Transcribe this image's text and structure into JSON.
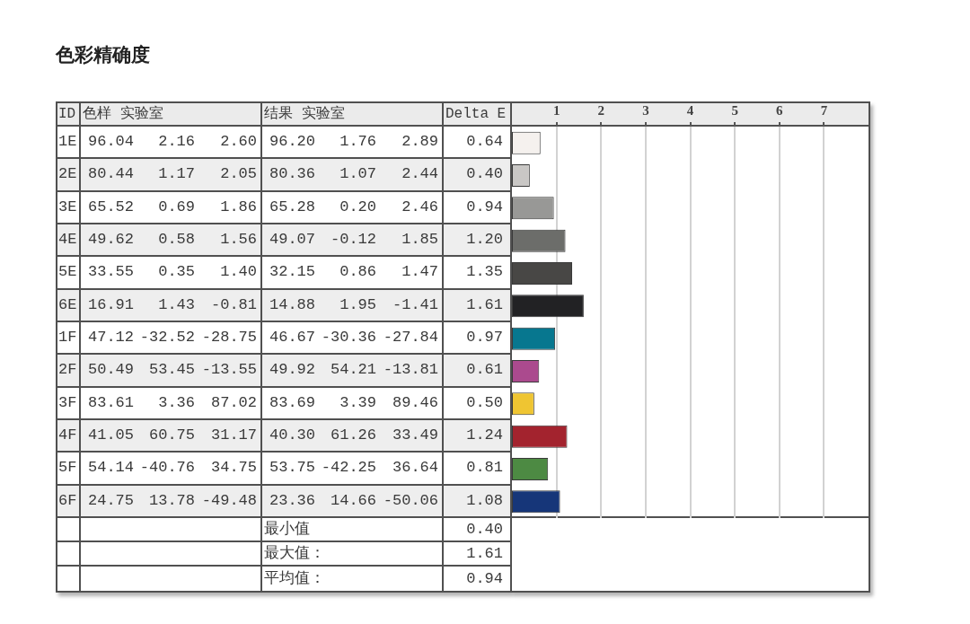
{
  "chart_data": [
    {
      "type": "heatmap",
      "title": "色彩精确度",
      "ylabel": "ID",
      "categories": [
        "色样 实验室",
        null,
        null,
        "结果 实验室",
        null,
        null,
        "Delta E"
      ],
      "y_categories": [
        "1E",
        "2E",
        "3E",
        "4E",
        "5E",
        "6E",
        "1F",
        "2F",
        "3F",
        "4F",
        "5F",
        "6F"
      ],
      "cells": [
        [
          96.04,
          2.16,
          2.6,
          96.2,
          1.76,
          2.89,
          0.64
        ],
        [
          80.44,
          1.17,
          2.05,
          80.36,
          1.07,
          2.44,
          0.4
        ],
        [
          65.52,
          0.69,
          1.86,
          65.28,
          0.2,
          2.46,
          0.94
        ],
        [
          49.62,
          0.58,
          1.56,
          49.07,
          -0.12,
          1.85,
          1.2
        ],
        [
          33.55,
          0.35,
          1.4,
          32.15,
          0.86,
          1.47,
          1.35
        ],
        [
          16.91,
          1.43,
          -0.81,
          14.88,
          1.95,
          -1.41,
          1.61
        ],
        [
          47.12,
          -32.52,
          -28.75,
          46.67,
          -30.36,
          -27.84,
          0.97
        ],
        [
          50.49,
          53.45,
          -13.55,
          49.92,
          54.21,
          -13.81,
          0.61
        ],
        [
          83.61,
          3.36,
          87.02,
          83.69,
          3.39,
          89.46,
          0.5
        ],
        [
          41.05,
          60.75,
          31.17,
          40.3,
          61.26,
          33.49,
          1.24
        ],
        [
          54.14,
          -40.76,
          34.75,
          53.75,
          -42.25,
          36.64,
          0.81
        ],
        [
          24.75,
          13.78,
          -49.48,
          23.36,
          14.66,
          -50.06,
          1.08
        ]
      ],
      "cell_labels": [
        [
          "96.04",
          "2.16",
          "2.60",
          "96.20",
          "1.76",
          "2.89",
          "0.64"
        ],
        [
          "80.44",
          "1.17",
          "2.05",
          "80.36",
          "1.07",
          "2.44",
          "0.40"
        ],
        [
          "65.52",
          "0.69",
          "1.86",
          "65.28",
          "0.20",
          "2.46",
          "0.94"
        ],
        [
          "49.62",
          "0.58",
          "1.56",
          "49.07",
          "-0.12",
          "1.85",
          "1.20"
        ],
        [
          "33.55",
          "0.35",
          "1.40",
          "32.15",
          "0.86",
          "1.47",
          "1.35"
        ],
        [
          "16.91",
          "1.43",
          "-0.81",
          "14.88",
          "1.95",
          "-1.41",
          "1.61"
        ],
        [
          "47.12",
          "-32.52",
          "-28.75",
          "46.67",
          "-30.36",
          "-27.84",
          "0.97"
        ],
        [
          "50.49",
          "53.45",
          "-13.55",
          "49.92",
          "54.21",
          "-13.81",
          "0.61"
        ],
        [
          "83.61",
          "3.36",
          "87.02",
          "83.69",
          "3.39",
          "89.46",
          "0.50"
        ],
        [
          "41.05",
          "60.75",
          "31.17",
          "40.30",
          "61.26",
          "33.49",
          "1.24"
        ],
        [
          "54.14",
          "-40.76",
          "34.75",
          "53.75",
          "-42.25",
          "36.64",
          "0.81"
        ],
        [
          "24.75",
          "13.78",
          "-49.48",
          "23.36",
          "14.66",
          "-50.06",
          "1.08"
        ]
      ],
      "annotations": [
        "最小值",
        "0.40",
        "最大值：",
        "1.61",
        "平均值：",
        "0.94"
      ]
    },
    {
      "type": "bar",
      "orientation": "horizontal",
      "categories": [
        null,
        null,
        null,
        null,
        null,
        null,
        null,
        null,
        null,
        null,
        null,
        null
      ],
      "values": [
        0.64,
        0.4,
        0.94,
        1.2,
        1.35,
        1.61,
        0.97,
        0.61,
        0.5,
        1.24,
        0.81,
        1.08
      ],
      "colors": [
        "#f5f1ee",
        "#c9c7c5",
        "#989896",
        "#6c6d6a",
        "#484745",
        "#222224",
        "#07778f",
        "#ab4a8e",
        "#efc532",
        "#a3232e",
        "#4d8a43",
        "#163679"
      ],
      "xlim": [
        0,
        8
      ],
      "xticks": [
        1,
        2,
        3,
        4,
        5,
        6,
        7
      ],
      "grid": "x"
    }
  ]
}
